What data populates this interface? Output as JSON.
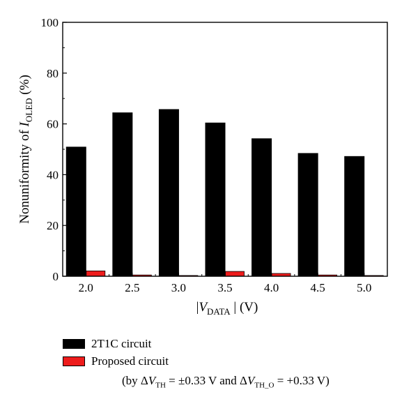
{
  "chart_data": {
    "type": "bar",
    "categories": [
      "2.0",
      "2.5",
      "3.0",
      "3.5",
      "4.0",
      "4.5",
      "5.0"
    ],
    "series": [
      {
        "name": "2T1C circuit",
        "color": "#000000",
        "values": [
          51.0,
          64.5,
          65.8,
          60.5,
          54.3,
          48.5,
          47.3
        ]
      },
      {
        "name": "Proposed circuit",
        "color": "#ee1c1c",
        "values": [
          2.1,
          0.5,
          0.3,
          1.9,
          1.1,
          0.5,
          0.3
        ]
      }
    ],
    "ylim": [
      0,
      100
    ],
    "yticks": [
      "0",
      "20",
      "40",
      "60",
      "80",
      "100"
    ],
    "ylabel": {
      "main": "Nonuniformity of ",
      "italic": "I",
      "sub": "OLED",
      "suffix": "  (%)"
    },
    "xlabel": {
      "prefix": "|",
      "italic": "V",
      "sub": "DATA",
      "suffix": " | (V)"
    },
    "legend_position": "below-left",
    "note": {
      "p1": "(by Δ",
      "v1": "V",
      "s1": "TH",
      "p2": " = ±0.33 V and Δ",
      "v2": "V",
      "s2": "TH_O",
      "p3": " = +0.33 V)"
    }
  }
}
